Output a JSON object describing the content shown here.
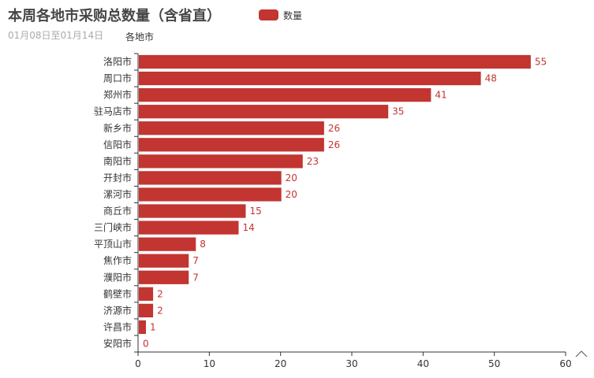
{
  "colors": {
    "bar": "#c23531",
    "axis": "#333333",
    "title": "#464646",
    "subtitle": "#aaaaaa"
  },
  "chart_data": {
    "type": "bar",
    "orientation": "horizontal",
    "title": "本周各地市采购总数量（含省直）",
    "subtitle": "01月08日至01月14日",
    "ylabel": "各地市",
    "xlabel": "",
    "legend": {
      "position": "top-center",
      "entries": [
        "数量"
      ]
    },
    "series": [
      {
        "name": "数量",
        "values": [
          55,
          48,
          41,
          35,
          26,
          26,
          23,
          20,
          20,
          15,
          14,
          8,
          7,
          7,
          2,
          2,
          1,
          0
        ]
      }
    ],
    "categories": [
      "洛阳市",
      "周口市",
      "郑州市",
      "驻马店市",
      "新乡市",
      "信阳市",
      "南阳市",
      "开封市",
      "漯河市",
      "商丘市",
      "三门峡市",
      "平顶山市",
      "焦作市",
      "濮阳市",
      "鹤壁市",
      "济源市",
      "许昌市",
      "安阳市"
    ],
    "xlim": [
      0,
      60
    ],
    "xticks": [
      0,
      10,
      20,
      30,
      40,
      50,
      60
    ],
    "grid": false,
    "data_labels": true
  }
}
